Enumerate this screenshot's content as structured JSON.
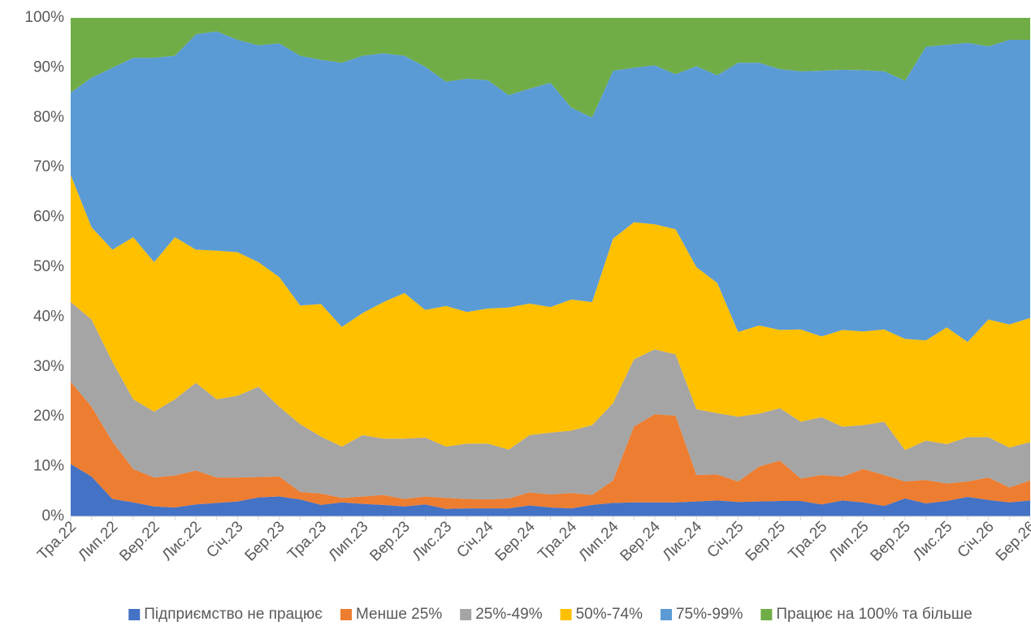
{
  "chart_data": {
    "type": "stacked-area",
    "categories": [
      "Тра.22",
      null,
      "Лип.22",
      null,
      "Вер.22",
      null,
      "Лис.22",
      null,
      "Січ.23",
      null,
      "Бер.23",
      null,
      "Тра.23",
      null,
      "Лип.23",
      null,
      "Вер.23",
      null,
      "Лис.23",
      null,
      "Січ.24",
      null,
      "Бер.24",
      null,
      "Тра.24",
      null,
      "Лип.24",
      null,
      "Вер.24",
      null,
      "Лис.24",
      null,
      "Січ.25",
      null,
      "Бер.25",
      null,
      "Тра.25",
      null,
      "Лип.25",
      null,
      "Вер.25",
      null,
      "Лис.25",
      null,
      "Січ.26",
      null,
      "Бер.26"
    ],
    "series": [
      {
        "name": "Підприємство не працює",
        "color": "#4472c4",
        "values": [
          10.5,
          8,
          3.5,
          2.8,
          2,
          1.8,
          2.4,
          2.7,
          3,
          3.8,
          4,
          3.4,
          2.3,
          2.8,
          2.5,
          2.3,
          2,
          2.4,
          1.5,
          1.6,
          1.6,
          1.6,
          2.2,
          1.8,
          1.6,
          2.3,
          2.7,
          2.8,
          2.8,
          2.8,
          3,
          3.2,
          2.9,
          3,
          3.1,
          3.1,
          2.4,
          3.2,
          2.8,
          2.1,
          3.6,
          2.6,
          3.1,
          3.9,
          3.3,
          2.8,
          3.2
        ]
      },
      {
        "name": "Менше 25%",
        "color": "#ed7d31",
        "values": [
          16.5,
          14,
          11.5,
          6.7,
          5.8,
          6.4,
          6.8,
          5.1,
          4.8,
          4.1,
          4,
          1.5,
          2.3,
          0.9,
          1.5,
          2,
          1.5,
          1.6,
          2.2,
          1.9,
          1.8,
          2,
          2.6,
          2.6,
          3.1,
          2,
          4.5,
          15.2,
          17.7,
          17.4,
          5.3,
          5.2,
          4.1,
          7,
          8.1,
          4.5,
          5.9,
          4.8,
          6.7,
          6.2,
          3.4,
          4.7,
          3.5,
          3.1,
          4.5,
          3,
          4
        ]
      },
      {
        "name": "25%-49%",
        "color": "#a5a5a5",
        "values": [
          16,
          17.5,
          16,
          14,
          13.2,
          15.3,
          17.6,
          15.7,
          16.4,
          18.1,
          14,
          13.6,
          11.4,
          10.3,
          12.3,
          11.3,
          12.1,
          11.8,
          10.3,
          11.1,
          11.2,
          9.8,
          11.5,
          12.4,
          12.5,
          14,
          15.5,
          13.5,
          13,
          12.3,
          13.2,
          12.3,
          13,
          10.6,
          10.5,
          11.4,
          11.6,
          10,
          8.8,
          10.7,
          6.3,
          7.9,
          7.9,
          8.9,
          8.1,
          8,
          7.7
        ]
      },
      {
        "name": "50%-74%",
        "color": "#ffc000",
        "values": [
          25.5,
          18.5,
          22.5,
          32.5,
          30,
          32.5,
          26.7,
          29.8,
          28.8,
          25,
          26,
          23.8,
          26.6,
          24,
          24.5,
          27.4,
          29.2,
          25.6,
          28.2,
          26.4,
          27.1,
          28.5,
          26.4,
          25.2,
          26.3,
          24.7,
          33,
          27.5,
          25.1,
          25.1,
          28.5,
          26.1,
          17,
          17.7,
          15.7,
          18.5,
          16.2,
          19.4,
          18.8,
          18.5,
          22.3,
          20.1,
          23.4,
          19.1,
          23.6,
          24.7,
          24.9
        ]
      },
      {
        "name": "75%-99%",
        "color": "#5b9bd5",
        "values": [
          16.5,
          30,
          36.5,
          36,
          41,
          36.4,
          43.2,
          44,
          42.6,
          43.5,
          46.9,
          50.1,
          49,
          53,
          51.6,
          49.9,
          47.6,
          48.8,
          45,
          46.8,
          45.8,
          42.6,
          43.1,
          45,
          38.5,
          37,
          33.7,
          31,
          31.9,
          31.1,
          40.3,
          41.7,
          54,
          52.7,
          52.3,
          51.8,
          53.3,
          52.2,
          52.4,
          51.8,
          51.8,
          58.9,
          56.7,
          60,
          54.8,
          57.1,
          55.8
        ]
      },
      {
        "name": "Працює на 100% та більше",
        "color": "#70ad47",
        "values": [
          15,
          12,
          10,
          8,
          8,
          7.6,
          3.3,
          2.7,
          4.4,
          5.5,
          5.1,
          7.6,
          8.4,
          9,
          7.6,
          7.1,
          7.6,
          9.8,
          12.8,
          12.2,
          12.5,
          15.5,
          14.2,
          13,
          18,
          20,
          10.6,
          10,
          9.5,
          11.3,
          9.7,
          11.5,
          9,
          9,
          10.3,
          10.7,
          10.6,
          10.4,
          10.5,
          10.7,
          12.6,
          5.8,
          5.4,
          5,
          5.7,
          4.4,
          4.4
        ]
      }
    ],
    "ylim": [
      0,
      100
    ],
    "yticks": [
      {
        "value": 0,
        "label": "0%"
      },
      {
        "value": 10,
        "label": "10%"
      },
      {
        "value": 20,
        "label": "20%"
      },
      {
        "value": 30,
        "label": "30%"
      },
      {
        "value": 40,
        "label": "40%"
      },
      {
        "value": 50,
        "label": "50%"
      },
      {
        "value": 60,
        "label": "60%"
      },
      {
        "value": 70,
        "label": "70%"
      },
      {
        "value": 80,
        "label": "80%"
      },
      {
        "value": 90,
        "label": "90%"
      },
      {
        "value": 100,
        "label": "100%"
      }
    ],
    "legend": "bottom"
  }
}
